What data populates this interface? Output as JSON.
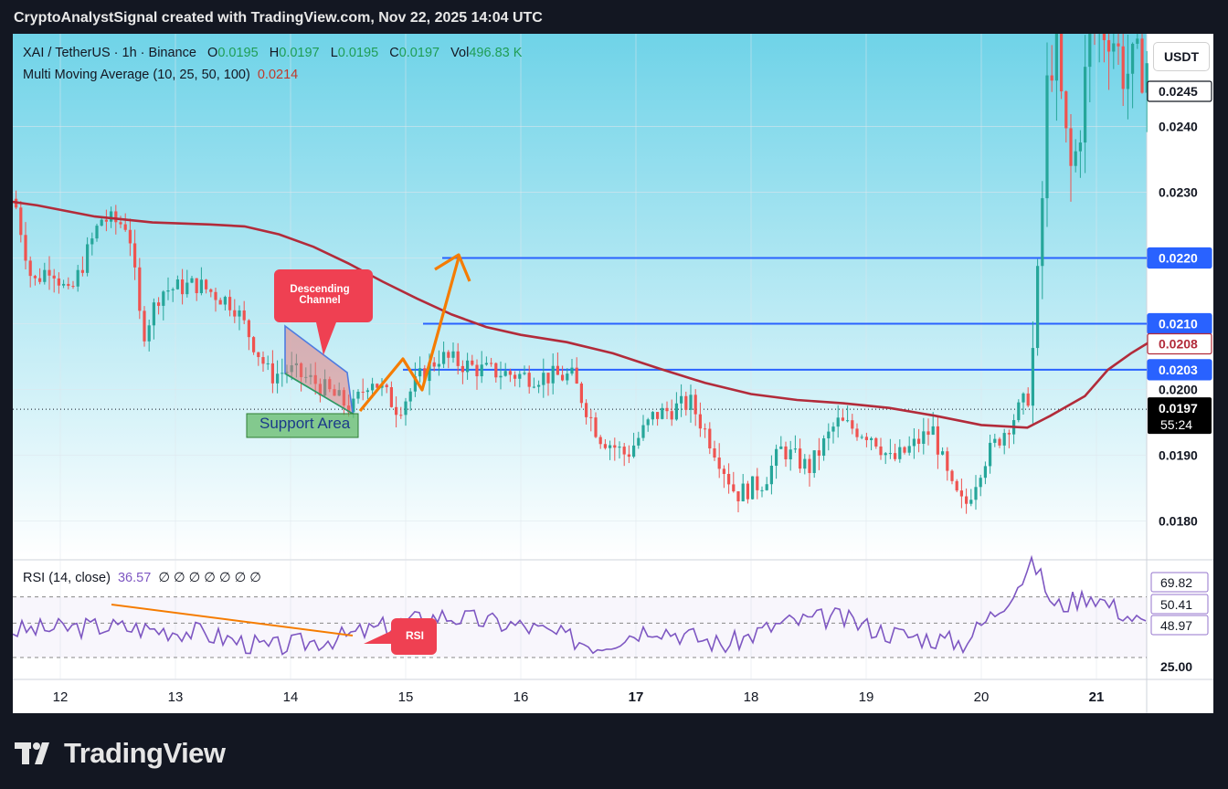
{
  "header": {
    "caption": "CryptoAnalystSignal created with TradingView.com, Nov 22, 2025 14:04 UTC"
  },
  "legend": {
    "symbol": "XAI / TetherUS · 1h · Binance",
    "o_label": "O",
    "o_val": "0.0195",
    "h_label": "H",
    "h_val": "0.0197",
    "l_label": "L",
    "l_val": "0.0195",
    "c_label": "C",
    "c_val": "0.0197",
    "vol_label": "Vol",
    "vol_val": "496.83 K",
    "ma_label": "Multi Moving Average (10, 25, 50, 100)",
    "ma_val": "0.0214",
    "rsi_label": "RSI (14, close)",
    "rsi_val": "36.57",
    "rsi_empties": "∅ ∅ ∅ ∅ ∅ ∅ ∅"
  },
  "currency_button": "USDT",
  "annotations": {
    "descending_channel": [
      "Descending",
      "Channel"
    ],
    "support_area": "Support Area",
    "rsi_tag": "RSI"
  },
  "price_badges": {
    "p0245": "0.0245",
    "p0220": "0.0220",
    "p0210": "0.0210",
    "p0208": "0.0208",
    "p0203": "0.0203",
    "p0197": "0.0197",
    "countdown": "55:24"
  },
  "rsi_badges": {
    "a": "69.82",
    "b": "50.41",
    "c": "48.97"
  },
  "footer": {
    "brand": "TradingView"
  },
  "colors": {
    "up": "#26a69a",
    "down": "#ef5350",
    "ma": "#b22b3a",
    "level": "#2962ff",
    "rsi": "#7e57c2",
    "arrow": "#f57c00"
  },
  "chart_data": {
    "type": "candlestick",
    "symbol": "XAI / TetherUS",
    "interval": "1h",
    "exchange": "Binance",
    "x_ticks": [
      "12",
      "13",
      "14",
      "15",
      "16",
      "17",
      "18",
      "19",
      "20",
      "21"
    ],
    "y_ticks": [
      "0.0240",
      "0.0230",
      "0.0200",
      "0.0190",
      "0.0180"
    ],
    "ylim": [
      0.0172,
      0.0252
    ],
    "horizontal_levels": [
      0.022,
      0.021,
      0.0203
    ],
    "last_price": 0.0197,
    "moving_average_100": [
      [
        11.4,
        0.0229
      ],
      [
        11.8,
        0.0228
      ],
      [
        12.3,
        0.02263
      ],
      [
        12.8,
        0.02254
      ],
      [
        13.3,
        0.02251
      ],
      [
        13.6,
        0.02248
      ],
      [
        13.9,
        0.02236
      ],
      [
        14.2,
        0.02217
      ],
      [
        14.5,
        0.02192
      ],
      [
        14.8,
        0.02164
      ],
      [
        15.1,
        0.02138
      ],
      [
        15.4,
        0.02114
      ],
      [
        15.7,
        0.02095
      ],
      [
        16.0,
        0.02083
      ],
      [
        16.4,
        0.02072
      ],
      [
        16.8,
        0.02055
      ],
      [
        17.2,
        0.02032
      ],
      [
        17.6,
        0.0201
      ],
      [
        18.0,
        0.01993
      ],
      [
        18.4,
        0.01984
      ],
      [
        18.8,
        0.01979
      ],
      [
        19.2,
        0.01972
      ],
      [
        19.6,
        0.0196
      ],
      [
        20.0,
        0.01946
      ],
      [
        20.4,
        0.01942
      ],
      [
        20.6,
        0.0196
      ],
      [
        20.9,
        0.0199
      ],
      [
        21.1,
        0.0203
      ],
      [
        21.3,
        0.02055
      ],
      [
        21.45,
        0.02071
      ]
    ],
    "rsi": {
      "period": 14,
      "current": 36.57,
      "levels": [
        69.82,
        50.41,
        48.97,
        25.0
      ]
    }
  }
}
